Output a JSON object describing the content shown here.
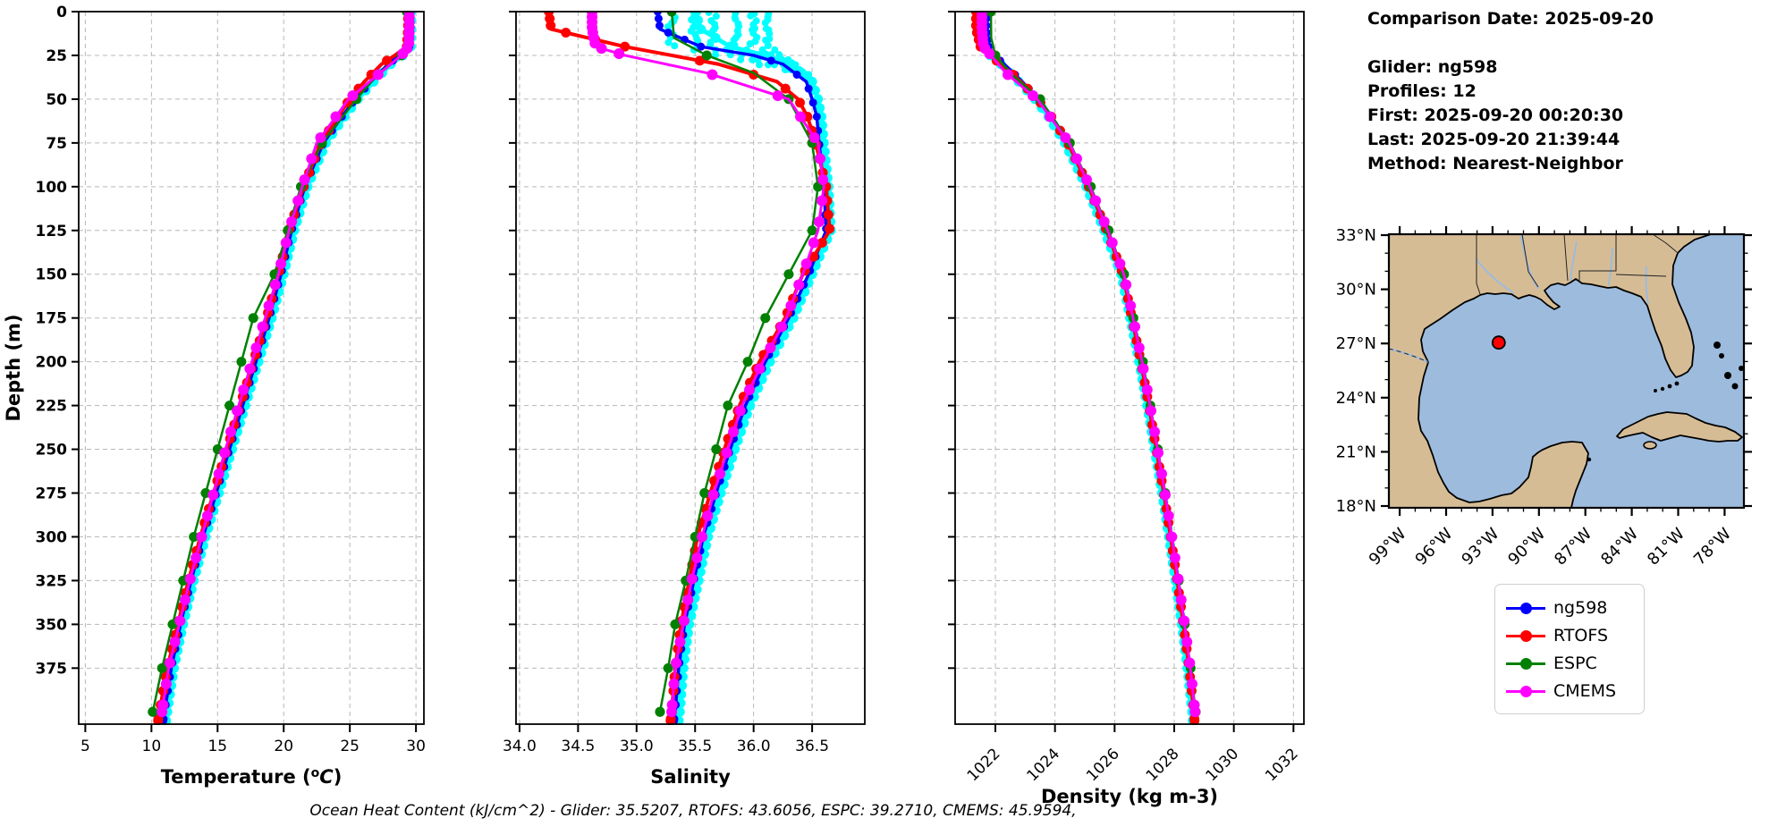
{
  "info_panel": {
    "comparison_date_line": "Comparison Date: 2025-09-20",
    "lines": [
      "Glider: ng598",
      "Profiles: 12",
      "First: 2025-09-20 00:20:30",
      "Last: 2025-09-20 21:39:44",
      "Method: Nearest-Neighbor"
    ]
  },
  "legend": {
    "items": [
      {
        "label": "ng598",
        "color": "#0000ff"
      },
      {
        "label": "RTOFS",
        "color": "#ff0000"
      },
      {
        "label": "ESPC",
        "color": "#008000"
      },
      {
        "label": "CMEMS",
        "color": "#ff00ff"
      }
    ]
  },
  "footer": {
    "text": "Ocean Heat Content (kJ/cm^2) - Glider: 35.5207,  RTOFS: 43.6056,  ESPC: 39.2710,  CMEMS: 45.9594,"
  },
  "map": {
    "lat_labels": [
      "33°N",
      "30°N",
      "27°N",
      "24°N",
      "21°N",
      "18°N"
    ],
    "lat_values": [
      33,
      30,
      27,
      24,
      21,
      18
    ],
    "lon_labels": [
      "99°W",
      "96°W",
      "93°W",
      "90°W",
      "87°W",
      "84°W",
      "81°W",
      "78°W"
    ],
    "lon_values_w": [
      99,
      96,
      93,
      90,
      87,
      84,
      81,
      78
    ],
    "land_color": "#d6bc95",
    "water_color": "#9dbbdd",
    "marker": {
      "lon_w": 92.6,
      "lat_n": 27.05,
      "color": "#ff0000"
    }
  },
  "chart_data": [
    {
      "id": "temperature",
      "type": "line",
      "xlabel": "Temperature (°C)",
      "math_oc": true,
      "xlim": [
        4.5,
        30.6
      ],
      "xticks": [
        5,
        10,
        15,
        20,
        25,
        30
      ],
      "xtick_labels": [
        "5",
        "10",
        "15",
        "20",
        "25",
        "30"
      ],
      "rotate_xticklabels": false,
      "ylabel": "Depth (m)",
      "ylim": [
        0,
        407
      ],
      "yticks": [
        0,
        25,
        50,
        75,
        100,
        125,
        150,
        175,
        200,
        225,
        250,
        275,
        300,
        325,
        350,
        375
      ],
      "series": [
        {
          "name": "ng598 individual profiles",
          "color": "#00ffff",
          "marker_r": 5.5,
          "line_width": 5,
          "marker_step": 5,
          "depths": [
            0,
            10,
            20,
            25,
            30,
            40,
            50,
            60,
            75,
            100,
            125,
            150,
            175,
            200,
            225,
            250,
            275,
            300,
            325,
            350,
            375,
            400,
            405
          ],
          "values": [
            29.65,
            29.65,
            29.6,
            29.0,
            28.1,
            26.8,
            25.6,
            24.6,
            23.2,
            21.8,
            20.8,
            20.0,
            19.1,
            18.1,
            17.1,
            16.1,
            15.1,
            14.1,
            13.2,
            12.4,
            11.7,
            11.2,
            11.1
          ]
        },
        {
          "name": "ng598",
          "color": "#0000ff",
          "marker_r": 4.5,
          "line_width": 3.5,
          "marker_step": 8,
          "dense_to": 20,
          "dense_step": 4,
          "depths": [
            0,
            10,
            20,
            25,
            30,
            40,
            50,
            60,
            75,
            100,
            125,
            150,
            175,
            200,
            225,
            250,
            275,
            300,
            325,
            350,
            375,
            400,
            405
          ],
          "values": [
            29.55,
            29.55,
            29.5,
            28.8,
            27.9,
            26.6,
            25.4,
            24.4,
            23.0,
            21.6,
            20.6,
            19.8,
            18.9,
            17.9,
            16.9,
            15.9,
            14.9,
            13.9,
            13.0,
            12.2,
            11.5,
            11.0,
            10.9
          ]
        },
        {
          "name": "RTOFS",
          "color": "#ff0000",
          "marker_r": 5.5,
          "line_width": 4,
          "marker_step": 8,
          "dense_to": 20,
          "dense_step": 4,
          "depths": [
            0,
            10,
            20,
            25,
            30,
            40,
            50,
            60,
            75,
            100,
            125,
            150,
            175,
            200,
            225,
            250,
            275,
            300,
            325,
            350,
            375,
            400,
            405
          ],
          "values": [
            29.4,
            29.4,
            29.3,
            28.4,
            27.4,
            26.1,
            25.0,
            24.1,
            22.8,
            21.5,
            20.4,
            19.6,
            18.7,
            17.7,
            16.7,
            15.7,
            14.7,
            13.7,
            12.8,
            12.0,
            11.2,
            10.6,
            10.5
          ]
        },
        {
          "name": "ESPC",
          "color": "#008000",
          "marker_r": 5.5,
          "line_width": 2.5,
          "marker_step": 25,
          "depths": [
            0,
            15,
            25,
            35,
            50,
            75,
            100,
            125,
            150,
            175,
            200,
            225,
            250,
            275,
            300,
            325,
            350,
            375,
            400
          ],
          "values": [
            29.3,
            29.3,
            28.9,
            27.2,
            25.5,
            22.9,
            21.3,
            20.3,
            19.3,
            17.7,
            16.8,
            15.9,
            15.0,
            14.1,
            13.2,
            12.4,
            11.6,
            10.8,
            10.1
          ]
        },
        {
          "name": "CMEMS",
          "color": "#ff00ff",
          "marker_r": 6,
          "line_width": 3,
          "marker_step": 12,
          "dense_to": 22,
          "dense_step": 3,
          "depths": [
            0,
            10,
            20,
            25,
            35,
            50,
            75,
            100,
            125,
            150,
            175,
            200,
            225,
            250,
            275,
            300,
            325,
            350,
            375,
            400
          ],
          "values": [
            29.5,
            29.5,
            29.45,
            28.9,
            27.3,
            24.9,
            22.5,
            21.4,
            20.4,
            19.6,
            18.6,
            17.6,
            16.6,
            15.6,
            14.7,
            13.8,
            12.9,
            12.1,
            11.3,
            10.8
          ]
        }
      ]
    },
    {
      "id": "salinity",
      "type": "line",
      "xlabel": "Salinity",
      "xlim": [
        33.97,
        36.95
      ],
      "xticks": [
        34.0,
        34.5,
        35.0,
        35.5,
        36.0,
        36.5
      ],
      "xtick_labels": [
        "34.0",
        "34.5",
        "35.0",
        "35.5",
        "36.0",
        "36.5"
      ],
      "rotate_xticklabels": false,
      "ylim": [
        0,
        407
      ],
      "yticks": [
        0,
        25,
        50,
        75,
        100,
        125,
        150,
        175,
        200,
        225,
        250,
        275,
        300,
        325,
        350,
        375
      ],
      "surface_scatter": {
        "color": "#00ffff",
        "values": [
          35.3,
          35.5,
          35.65,
          35.85,
          36.0,
          36.12
        ],
        "to_depth": 19,
        "merge_value": 36.45,
        "merge_depth": 36
      },
      "series": [
        {
          "name": "ng598 individual profiles",
          "color": "#00ffff",
          "marker_r": 5.5,
          "line_width": 5,
          "marker_step": 5,
          "depths": [
            0,
            10,
            20,
            25,
            30,
            40,
            50,
            60,
            75,
            100,
            125,
            150,
            175,
            200,
            225,
            250,
            275,
            300,
            325,
            350,
            375,
            400,
            405
          ],
          "values": [
            35.5,
            35.55,
            35.8,
            36.1,
            36.32,
            36.5,
            36.55,
            36.58,
            36.6,
            36.64,
            36.66,
            36.5,
            36.34,
            36.14,
            35.97,
            35.84,
            35.72,
            35.61,
            35.53,
            35.45,
            35.4,
            35.37,
            35.36
          ]
        },
        {
          "name": "ng598",
          "color": "#0000ff",
          "marker_r": 4.5,
          "line_width": 3.5,
          "marker_step": 8,
          "dense_to": 20,
          "dense_step": 4,
          "depths": [
            0,
            10,
            20,
            25,
            30,
            40,
            50,
            60,
            75,
            100,
            125,
            150,
            175,
            200,
            225,
            250,
            275,
            300,
            325,
            350,
            375,
            400,
            405
          ],
          "values": [
            35.18,
            35.2,
            35.55,
            36.0,
            36.25,
            36.45,
            36.5,
            36.54,
            36.56,
            36.6,
            36.62,
            36.47,
            36.3,
            36.1,
            35.93,
            35.8,
            35.68,
            35.57,
            35.49,
            35.41,
            35.36,
            35.33,
            35.32
          ]
        },
        {
          "name": "RTOFS",
          "color": "#ff0000",
          "marker_r": 5.5,
          "line_width": 4,
          "marker_step": 8,
          "dense_to": 20,
          "dense_step": 4,
          "depths": [
            0,
            10,
            20,
            25,
            30,
            40,
            50,
            60,
            75,
            100,
            125,
            150,
            175,
            200,
            225,
            250,
            275,
            300,
            325,
            350,
            375,
            400,
            405
          ],
          "values": [
            34.25,
            34.27,
            34.9,
            35.3,
            35.7,
            36.2,
            36.38,
            36.46,
            36.53,
            36.62,
            36.65,
            36.42,
            36.27,
            36.05,
            35.88,
            35.75,
            35.63,
            35.52,
            35.45,
            35.38,
            35.33,
            35.3,
            35.29
          ]
        },
        {
          "name": "ESPC",
          "color": "#008000",
          "marker_r": 5.5,
          "line_width": 2.5,
          "marker_step": 25,
          "depths": [
            0,
            15,
            25,
            35,
            50,
            75,
            100,
            125,
            150,
            175,
            200,
            225,
            250,
            275,
            300,
            325,
            350,
            375,
            400
          ],
          "values": [
            35.3,
            35.32,
            35.6,
            36.0,
            36.3,
            36.5,
            36.55,
            36.5,
            36.3,
            36.1,
            35.95,
            35.78,
            35.68,
            35.58,
            35.5,
            35.42,
            35.33,
            35.27,
            35.2
          ]
        },
        {
          "name": "CMEMS",
          "color": "#ff00ff",
          "marker_r": 6,
          "line_width": 3,
          "marker_step": 12,
          "dense_to": 22,
          "dense_step": 3,
          "depths": [
            0,
            10,
            20,
            25,
            35,
            50,
            75,
            100,
            125,
            150,
            175,
            200,
            225,
            250,
            275,
            300,
            325,
            350,
            375,
            400
          ],
          "values": [
            34.62,
            34.62,
            34.65,
            34.9,
            35.6,
            36.3,
            36.55,
            36.6,
            36.55,
            36.42,
            36.28,
            36.08,
            35.9,
            35.78,
            35.66,
            35.56,
            35.47,
            35.4,
            35.33,
            35.3
          ]
        }
      ]
    },
    {
      "id": "density",
      "type": "line",
      "xlabel": "Density (kg m-3)",
      "xlim": [
        1020.65,
        1032.35
      ],
      "xticks": [
        1022,
        1024,
        1026,
        1028,
        1030,
        1032
      ],
      "xtick_labels": [
        "1022",
        "1024",
        "1026",
        "1028",
        "1030",
        "1032"
      ],
      "rotate_xticklabels": true,
      "ylim": [
        0,
        407
      ],
      "yticks": [
        0,
        25,
        50,
        75,
        100,
        125,
        150,
        175,
        200,
        225,
        250,
        275,
        300,
        325,
        350,
        375
      ],
      "series": [
        {
          "name": "ng598 individual profiles",
          "color": "#00ffff",
          "marker_r": 5.5,
          "line_width": 5,
          "marker_step": 5,
          "depths": [
            0,
            10,
            20,
            25,
            30,
            40,
            50,
            60,
            75,
            100,
            125,
            150,
            175,
            200,
            225,
            250,
            275,
            300,
            325,
            350,
            375,
            400,
            405
          ],
          "values": [
            1021.58,
            1021.58,
            1021.66,
            1021.83,
            1022.18,
            1022.78,
            1023.33,
            1023.78,
            1024.33,
            1025.05,
            1025.65,
            1026.22,
            1026.52,
            1026.82,
            1027.09,
            1027.34,
            1027.59,
            1027.82,
            1028.04,
            1028.25,
            1028.44,
            1028.6,
            1028.62
          ]
        },
        {
          "name": "ng598",
          "color": "#0000ff",
          "marker_r": 4.5,
          "line_width": 3.5,
          "marker_step": 8,
          "dense_to": 20,
          "dense_step": 4,
          "depths": [
            0,
            10,
            20,
            25,
            30,
            40,
            50,
            60,
            75,
            100,
            125,
            150,
            175,
            200,
            225,
            250,
            275,
            300,
            325,
            350,
            375,
            400,
            405
          ],
          "values": [
            1021.7,
            1021.7,
            1021.78,
            1021.95,
            1022.3,
            1022.9,
            1023.45,
            1023.9,
            1024.45,
            1025.15,
            1025.75,
            1026.3,
            1026.6,
            1026.9,
            1027.17,
            1027.42,
            1027.67,
            1027.9,
            1028.12,
            1028.33,
            1028.52,
            1028.68,
            1028.7
          ]
        },
        {
          "name": "RTOFS",
          "color": "#ff0000",
          "marker_r": 5.5,
          "line_width": 4,
          "marker_step": 8,
          "dense_to": 20,
          "dense_step": 4,
          "depths": [
            0,
            10,
            20,
            25,
            30,
            40,
            50,
            60,
            75,
            100,
            125,
            150,
            175,
            200,
            225,
            250,
            275,
            300,
            325,
            350,
            375,
            400,
            405
          ],
          "values": [
            1021.35,
            1021.35,
            1021.5,
            1021.8,
            1022.2,
            1022.85,
            1023.42,
            1023.88,
            1024.43,
            1025.13,
            1025.73,
            1026.28,
            1026.58,
            1026.88,
            1027.15,
            1027.4,
            1027.65,
            1027.88,
            1028.1,
            1028.31,
            1028.5,
            1028.66,
            1028.68
          ]
        },
        {
          "name": "ESPC",
          "color": "#008000",
          "marker_r": 5.5,
          "line_width": 2.5,
          "marker_step": 25,
          "depths": [
            0,
            15,
            25,
            35,
            50,
            75,
            100,
            125,
            150,
            175,
            200,
            225,
            250,
            275,
            300,
            325,
            350,
            375,
            400
          ],
          "values": [
            1021.85,
            1021.86,
            1022.0,
            1022.5,
            1023.5,
            1024.5,
            1025.2,
            1025.8,
            1026.32,
            1026.63,
            1026.95,
            1027.2,
            1027.45,
            1027.7,
            1027.93,
            1028.15,
            1028.35,
            1028.55,
            1028.72
          ]
        },
        {
          "name": "CMEMS",
          "color": "#ff00ff",
          "marker_r": 6,
          "line_width": 3,
          "marker_step": 12,
          "dense_to": 22,
          "dense_step": 3,
          "depths": [
            0,
            10,
            20,
            25,
            35,
            50,
            75,
            100,
            125,
            150,
            175,
            200,
            225,
            250,
            275,
            300,
            325,
            350,
            375,
            400
          ],
          "values": [
            1021.55,
            1021.55,
            1021.6,
            1021.85,
            1022.35,
            1023.4,
            1024.48,
            1025.17,
            1025.77,
            1026.31,
            1026.62,
            1026.92,
            1027.19,
            1027.44,
            1027.69,
            1027.92,
            1028.14,
            1028.35,
            1028.54,
            1028.7
          ]
        }
      ]
    }
  ]
}
